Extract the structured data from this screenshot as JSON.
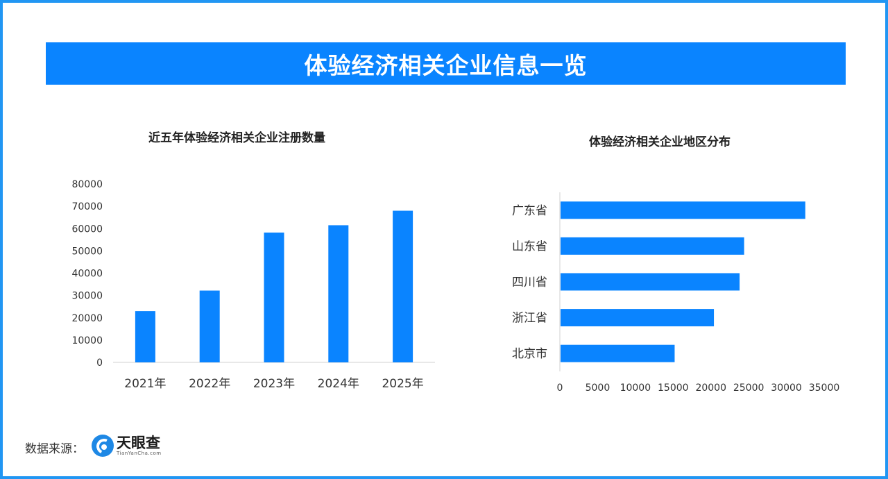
{
  "header": {
    "title": "体验经济相关企业信息一览"
  },
  "chart_data": [
    {
      "type": "bar",
      "title": "近五年体验经济相关企业注册数量",
      "categories": [
        "2021年",
        "2022年",
        "2023年",
        "2024年",
        "2025年"
      ],
      "values": [
        23000,
        32200,
        58200,
        61500,
        68000
      ],
      "yticks": [
        "0",
        "10000",
        "20000",
        "30000",
        "40000",
        "50000",
        "60000",
        "70000",
        "80000"
      ],
      "ylim": [
        0,
        80000
      ],
      "color": "#0a84ff",
      "grid": false
    },
    {
      "type": "bar",
      "orientation": "horizontal",
      "title": "体验经济相关企业地区分布",
      "categories": [
        "广东省",
        "山东省",
        "四川省",
        "浙江省",
        "北京市"
      ],
      "values": [
        32500,
        24400,
        23800,
        20400,
        15200
      ],
      "xticks": [
        "0",
        "5000",
        "10000",
        "15000",
        "20000",
        "25000",
        "30000",
        "35000"
      ],
      "xlim": [
        0,
        35000
      ],
      "color": "#0a84ff",
      "grid": false
    }
  ],
  "footer": {
    "source_label": "数据来源：",
    "logo_name": "天眼查",
    "logo_sub": "TianYanCha.com"
  }
}
